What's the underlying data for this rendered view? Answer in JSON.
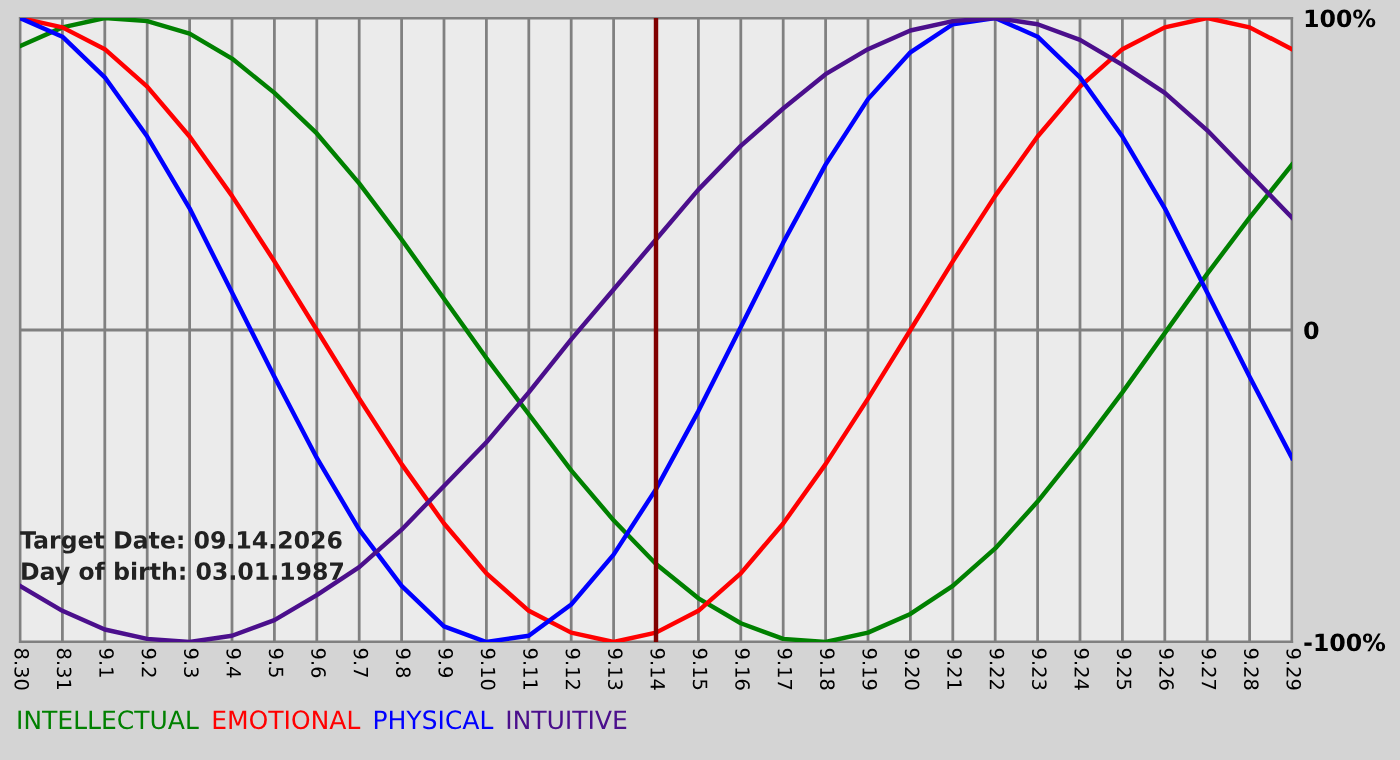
{
  "chart_data": {
    "type": "line",
    "categories": [
      "8.30",
      "8.31",
      "9.1",
      "9.2",
      "9.3",
      "9.4",
      "9.5",
      "9.6",
      "9.7",
      "9.8",
      "9.9",
      "9.10",
      "9.11",
      "9.12",
      "9.13",
      "9.14",
      "9.15",
      "9.16",
      "9.17",
      "9.18",
      "9.19",
      "9.20",
      "9.21",
      "9.22",
      "9.23",
      "9.24",
      "9.25",
      "9.26",
      "9.27",
      "9.28",
      "9.29"
    ],
    "series": [
      {
        "name": "INTELLECTUAL",
        "color": "#008000",
        "values": [
          91,
          97,
          100,
          99,
          95,
          87,
          76,
          63,
          47,
          29,
          10,
          -9,
          -27,
          -45,
          -61,
          -75,
          -86,
          -94,
          -99,
          -100,
          -97,
          -91,
          -82,
          -70,
          -55,
          -38,
          -20,
          -1,
          18,
          36,
          53
        ]
      },
      {
        "name": "EMOTIONAL",
        "color": "#ff0000",
        "values": [
          100,
          97,
          90,
          78,
          62,
          43,
          22,
          0,
          -22,
          -43,
          -62,
          -78,
          -90,
          -97,
          -100,
          -97,
          -90,
          -78,
          -62,
          -43,
          -22,
          0,
          22,
          43,
          62,
          78,
          90,
          97,
          100,
          97,
          90
        ]
      },
      {
        "name": "PHYSICAL",
        "color": "#0000ff",
        "values": [
          100,
          94,
          81,
          62,
          39,
          12,
          -15,
          -41,
          -64,
          -82,
          -95,
          -100,
          -98,
          -88,
          -72,
          -51,
          -26,
          1,
          28,
          53,
          74,
          89,
          98,
          100,
          94,
          81,
          62,
          39,
          12,
          -15,
          -41
        ]
      },
      {
        "name": "INTUITIVE",
        "color": "#4b0f8c",
        "values": [
          -82,
          -90,
          -96,
          -99,
          -100,
          -98,
          -93,
          -85,
          -76,
          -64,
          -50,
          -36,
          -20,
          -3,
          13,
          29,
          45,
          59,
          71,
          82,
          90,
          96,
          99,
          100,
          98,
          93,
          85,
          76,
          64,
          50,
          36
        ]
      }
    ],
    "ylim": [
      -100,
      100
    ],
    "yticks": [
      {
        "value": 100,
        "label": "100%"
      },
      0,
      {
        "value": -100,
        "label": "-100%"
      }
    ],
    "grid": true,
    "legend": "bottom",
    "marker": "none",
    "line_style": "solid",
    "ref_lines": [
      {
        "axis": "x",
        "value": "9.14",
        "color": "#800000"
      }
    ],
    "annotations": [
      "Target Date: 09.14.2026",
      "Day of birth: 03.01.1987"
    ]
  }
}
